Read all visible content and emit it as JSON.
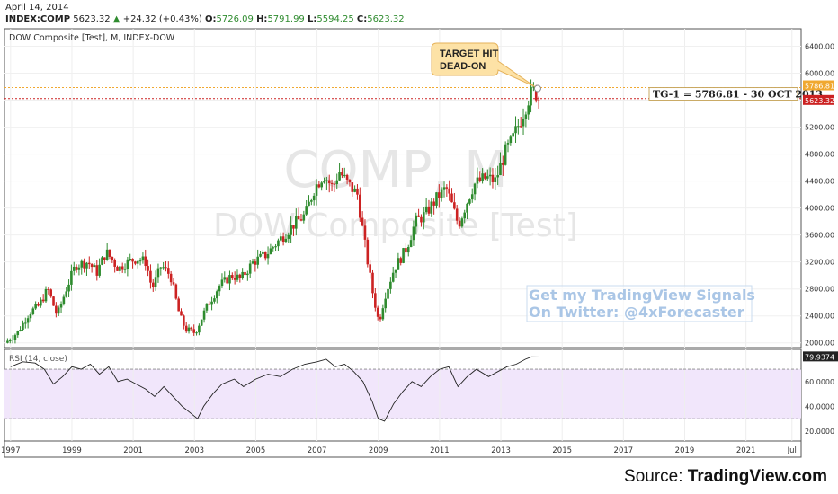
{
  "header": {
    "date": "April 14, 2014",
    "symbol": "INDEX:COMP",
    "last": "5623.32",
    "change": "+24.32 (+0.43%)",
    "open_label": "O:",
    "open": "5726.09",
    "high_label": "H:",
    "high": "5791.99",
    "low_label": "L:",
    "low": "5594.25",
    "close_label": "C:",
    "close": "5623.32"
  },
  "chart": {
    "legend": "DOW Composite [Test], M, INDEX-DOW",
    "watermark_symbol": "COMP, M",
    "watermark_name": "DOW Composite [Test]",
    "annotation": "TARGET HIT DEAD-ON",
    "annotation_lines": [
      "TARGET HIT",
      "DEAD-ON"
    ],
    "target_label": "TG-1 = 5786.81 - 30 OCT 2013",
    "promo_line1": "Get my TradingView Signals",
    "promo_line2": "On Twitter: @4xForecaster",
    "rsi_legend": "RSI (14, close)",
    "colors": {
      "up": "#2e8b2e",
      "down": "#cc2222",
      "target_line": "#f0a830",
      "price_line": "#cc2222",
      "rsi_band": "#f1e6fb",
      "rsi_line": "#222222",
      "promo": "#aac6e6"
    }
  },
  "chart_data": [
    {
      "type": "candlestick",
      "title": "DOW Composite [Test], M, INDEX-DOW",
      "x_tick_labels": [
        "1997",
        "1999",
        "2001",
        "2003",
        "2005",
        "2007",
        "2009",
        "2011",
        "2013",
        "2015",
        "2017",
        "2019",
        "2021",
        "Jul"
      ],
      "x_tick_years": [
        1997,
        1999,
        2001,
        2003,
        2005,
        2007,
        2009,
        2011,
        2013,
        2015,
        2017,
        2019,
        2021,
        2022.5
      ],
      "xlim_years": [
        1996.8,
        2022.8
      ],
      "y_tick_labels": [
        "2000.00",
        "2400.00",
        "2800.00",
        "3200.00",
        "3600.00",
        "4000.00",
        "4400.00",
        "4800.00",
        "5200.00",
        "5600.00",
        "6000.00",
        "6400.00"
      ],
      "ylim": [
        1930,
        6660
      ],
      "target_level": 5786.81,
      "target_label_value": "5786.81",
      "last_price": 5623.32,
      "last_price_label": "5623.32",
      "price_path": [
        [
          1996.9,
          2000
        ],
        [
          1997.3,
          2150
        ],
        [
          1997.7,
          2450
        ],
        [
          1998.0,
          2550
        ],
        [
          1998.3,
          2800
        ],
        [
          1998.6,
          2400
        ],
        [
          1998.9,
          2800
        ],
        [
          1999.2,
          3150
        ],
        [
          1999.6,
          3200
        ],
        [
          1999.9,
          3050
        ],
        [
          2000.2,
          3350
        ],
        [
          2000.6,
          3100
        ],
        [
          2000.9,
          3200
        ],
        [
          2001.2,
          3250
        ],
        [
          2001.5,
          3200
        ],
        [
          2001.7,
          2800
        ],
        [
          2002.0,
          3150
        ],
        [
          2002.3,
          3000
        ],
        [
          2002.6,
          2400
        ],
        [
          2002.8,
          2200
        ],
        [
          2003.1,
          2150
        ],
        [
          2003.5,
          2550
        ],
        [
          2003.9,
          2850
        ],
        [
          2004.3,
          3000
        ],
        [
          2004.6,
          2950
        ],
        [
          2005.0,
          3200
        ],
        [
          2005.4,
          3300
        ],
        [
          2005.9,
          3550
        ],
        [
          2006.3,
          3750
        ],
        [
          2006.7,
          3900
        ],
        [
          2007.0,
          4300
        ],
        [
          2007.3,
          4500
        ],
        [
          2007.6,
          4300
        ],
        [
          2007.8,
          4550
        ],
        [
          2008.1,
          4350
        ],
        [
          2008.4,
          4200
        ],
        [
          2008.7,
          3300
        ],
        [
          2008.9,
          2750
        ],
        [
          2009.1,
          2300
        ],
        [
          2009.3,
          2700
        ],
        [
          2009.6,
          3100
        ],
        [
          2010.0,
          3400
        ],
        [
          2010.3,
          3800
        ],
        [
          2010.6,
          3900
        ],
        [
          2011.0,
          4150
        ],
        [
          2011.3,
          4300
        ],
        [
          2011.7,
          3750
        ],
        [
          2011.9,
          4000
        ],
        [
          2012.2,
          4350
        ],
        [
          2012.6,
          4450
        ],
        [
          2012.9,
          4400
        ],
        [
          2013.2,
          4800
        ],
        [
          2013.5,
          5050
        ],
        [
          2013.8,
          5400
        ],
        [
          2014.0,
          5650
        ],
        [
          2014.2,
          5750
        ],
        [
          2014.3,
          5620
        ]
      ]
    },
    {
      "type": "line",
      "title": "RSI (14, close)",
      "x_tick_years": [
        1997,
        1999,
        2001,
        2003,
        2005,
        2007,
        2009,
        2011,
        2013,
        2015,
        2017,
        2019,
        2021,
        2022.5
      ],
      "y_tick_labels": [
        "20.0000",
        "40.0000",
        "60.0000"
      ],
      "ylim": [
        12,
        86
      ],
      "band": [
        30,
        70
      ],
      "last_value": 79.9374,
      "last_value_label": "79.9374",
      "values": [
        [
          1997.0,
          72
        ],
        [
          1997.4,
          76
        ],
        [
          1997.8,
          75
        ],
        [
          1998.1,
          70
        ],
        [
          1998.4,
          58
        ],
        [
          1998.7,
          64
        ],
        [
          1999.0,
          72
        ],
        [
          1999.3,
          70
        ],
        [
          1999.6,
          74
        ],
        [
          1999.9,
          66
        ],
        [
          2000.2,
          72
        ],
        [
          2000.5,
          60
        ],
        [
          2000.8,
          62
        ],
        [
          2001.1,
          58
        ],
        [
          2001.4,
          54
        ],
        [
          2001.7,
          48
        ],
        [
          2002.0,
          56
        ],
        [
          2002.3,
          48
        ],
        [
          2002.6,
          40
        ],
        [
          2002.9,
          34
        ],
        [
          2003.1,
          30
        ],
        [
          2003.3,
          40
        ],
        [
          2003.6,
          50
        ],
        [
          2003.9,
          58
        ],
        [
          2004.3,
          62
        ],
        [
          2004.6,
          56
        ],
        [
          2005.0,
          62
        ],
        [
          2005.4,
          66
        ],
        [
          2005.8,
          64
        ],
        [
          2006.2,
          70
        ],
        [
          2006.6,
          74
        ],
        [
          2007.0,
          76
        ],
        [
          2007.3,
          78
        ],
        [
          2007.6,
          72
        ],
        [
          2007.9,
          74
        ],
        [
          2008.2,
          68
        ],
        [
          2008.5,
          60
        ],
        [
          2008.8,
          44
        ],
        [
          2009.0,
          30
        ],
        [
          2009.2,
          28
        ],
        [
          2009.5,
          42
        ],
        [
          2009.8,
          52
        ],
        [
          2010.1,
          60
        ],
        [
          2010.4,
          56
        ],
        [
          2010.7,
          64
        ],
        [
          2011.0,
          70
        ],
        [
          2011.3,
          72
        ],
        [
          2011.6,
          56
        ],
        [
          2011.9,
          64
        ],
        [
          2012.2,
          70
        ],
        [
          2012.6,
          64
        ],
        [
          2012.9,
          68
        ],
        [
          2013.2,
          72
        ],
        [
          2013.5,
          74
        ],
        [
          2013.8,
          78
        ],
        [
          2014.0,
          80
        ],
        [
          2014.3,
          79.94
        ]
      ]
    }
  ]
}
